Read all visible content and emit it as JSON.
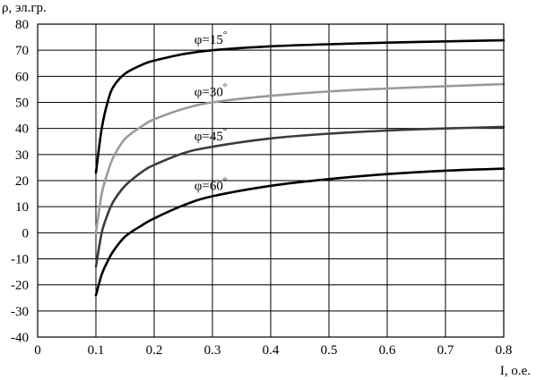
{
  "chart_data": {
    "type": "line",
    "xlabel": "I, о.е.",
    "ylabel": "ρ, эл.гр.",
    "xlim": [
      0,
      0.8
    ],
    "ylim": [
      -40,
      80
    ],
    "x_ticks": [
      "0",
      "0.1",
      "0.2",
      "0.3",
      "0.4",
      "0.5",
      "0.6",
      "0.7",
      "0.8"
    ],
    "x_tick_values": [
      0,
      0.1,
      0.2,
      0.3,
      0.4,
      0.5,
      0.6,
      0.7,
      0.8
    ],
    "y_ticks": [
      "80",
      "70",
      "60",
      "50",
      "40",
      "30",
      "20",
      "10",
      "0",
      "-10",
      "-20",
      "-30",
      "-40"
    ],
    "y_tick_values": [
      80,
      70,
      60,
      50,
      40,
      30,
      20,
      10,
      0,
      -10,
      -20,
      -30,
      -40
    ],
    "grid": true,
    "series": [
      {
        "name": "φ=15°",
        "label_main": "φ=15",
        "label_sup": "°",
        "color": "#000000",
        "x": [
          0.1,
          0.11,
          0.12,
          0.13,
          0.15,
          0.18,
          0.2,
          0.25,
          0.3,
          0.4,
          0.5,
          0.6,
          0.7,
          0.8
        ],
        "y": [
          23,
          40,
          50,
          56,
          61,
          64.5,
          66,
          68.5,
          70,
          71.5,
          72.3,
          72.9,
          73.4,
          73.8
        ]
      },
      {
        "name": "φ=30°",
        "label_main": "φ=30",
        "label_sup": "°",
        "color": "#9a9a9a",
        "x": [
          0.1,
          0.11,
          0.12,
          0.13,
          0.15,
          0.18,
          0.2,
          0.25,
          0.3,
          0.4,
          0.5,
          0.6,
          0.7,
          0.8
        ],
        "y": [
          0,
          15,
          23,
          29,
          36,
          41,
          43.5,
          47.5,
          50,
          52.5,
          54.2,
          55.3,
          56.2,
          57
        ]
      },
      {
        "name": "φ=45°",
        "label_main": "φ=45",
        "label_sup": "°",
        "color": "#3c3c3c",
        "x": [
          0.1,
          0.11,
          0.12,
          0.13,
          0.15,
          0.18,
          0.2,
          0.25,
          0.3,
          0.4,
          0.5,
          0.6,
          0.7,
          0.8
        ],
        "y": [
          -13,
          0,
          7,
          12,
          18,
          23.5,
          26,
          30.5,
          33,
          36.2,
          38,
          39.2,
          40,
          40.6
        ]
      },
      {
        "name": "φ=60°",
        "label_main": "φ=60",
        "label_sup": "°",
        "color": "#000000",
        "x": [
          0.1,
          0.11,
          0.12,
          0.13,
          0.15,
          0.18,
          0.2,
          0.25,
          0.3,
          0.4,
          0.5,
          0.6,
          0.7,
          0.8
        ],
        "y": [
          -24,
          -16,
          -11,
          -7,
          -1.5,
          3,
          5.5,
          10.5,
          14,
          18,
          20.6,
          22.5,
          23.8,
          24.6
        ]
      }
    ]
  }
}
